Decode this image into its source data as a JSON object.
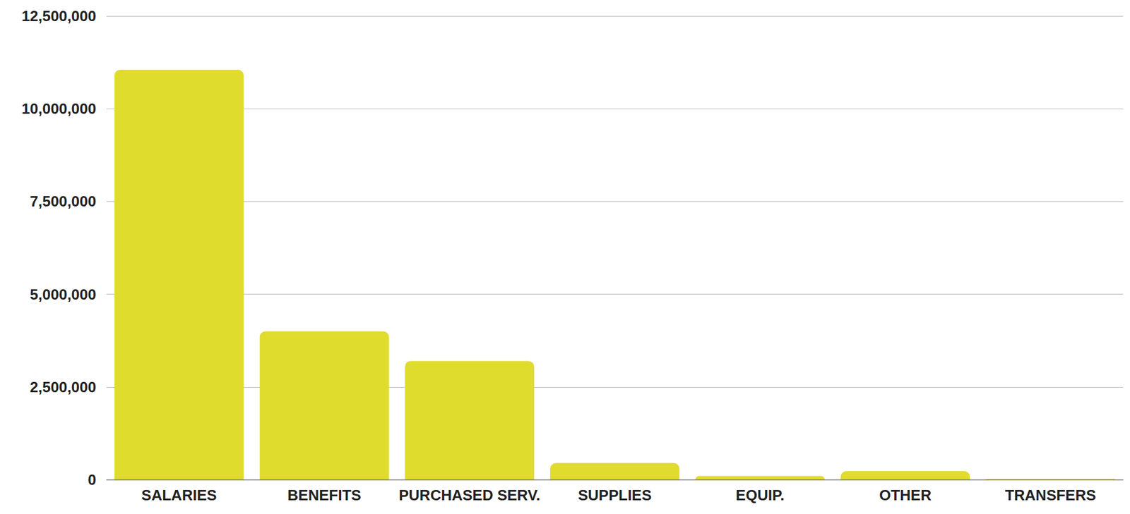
{
  "chart_data": {
    "type": "bar",
    "categories": [
      "SALARIES",
      "BENEFITS",
      "PURCHASED SERV.",
      "SUPPLIES",
      "EQUIP.",
      "OTHER",
      "TRANSFERS"
    ],
    "values": [
      11050000,
      4000000,
      3200000,
      450000,
      100000,
      230000,
      20000
    ],
    "color": "#e0dc2e",
    "ylim": [
      0,
      12500000
    ],
    "yticks": [
      0,
      {
        "value": 2500000,
        "label": "2,500,000"
      },
      {
        "value": 5000000,
        "label": "5,000,000"
      },
      {
        "value": 7500000,
        "label": "7,500,000"
      },
      {
        "value": 10000000,
        "label": "10,000,000"
      },
      {
        "value": 12500000,
        "label": "12,500,000"
      }
    ],
    "grid": true
  }
}
